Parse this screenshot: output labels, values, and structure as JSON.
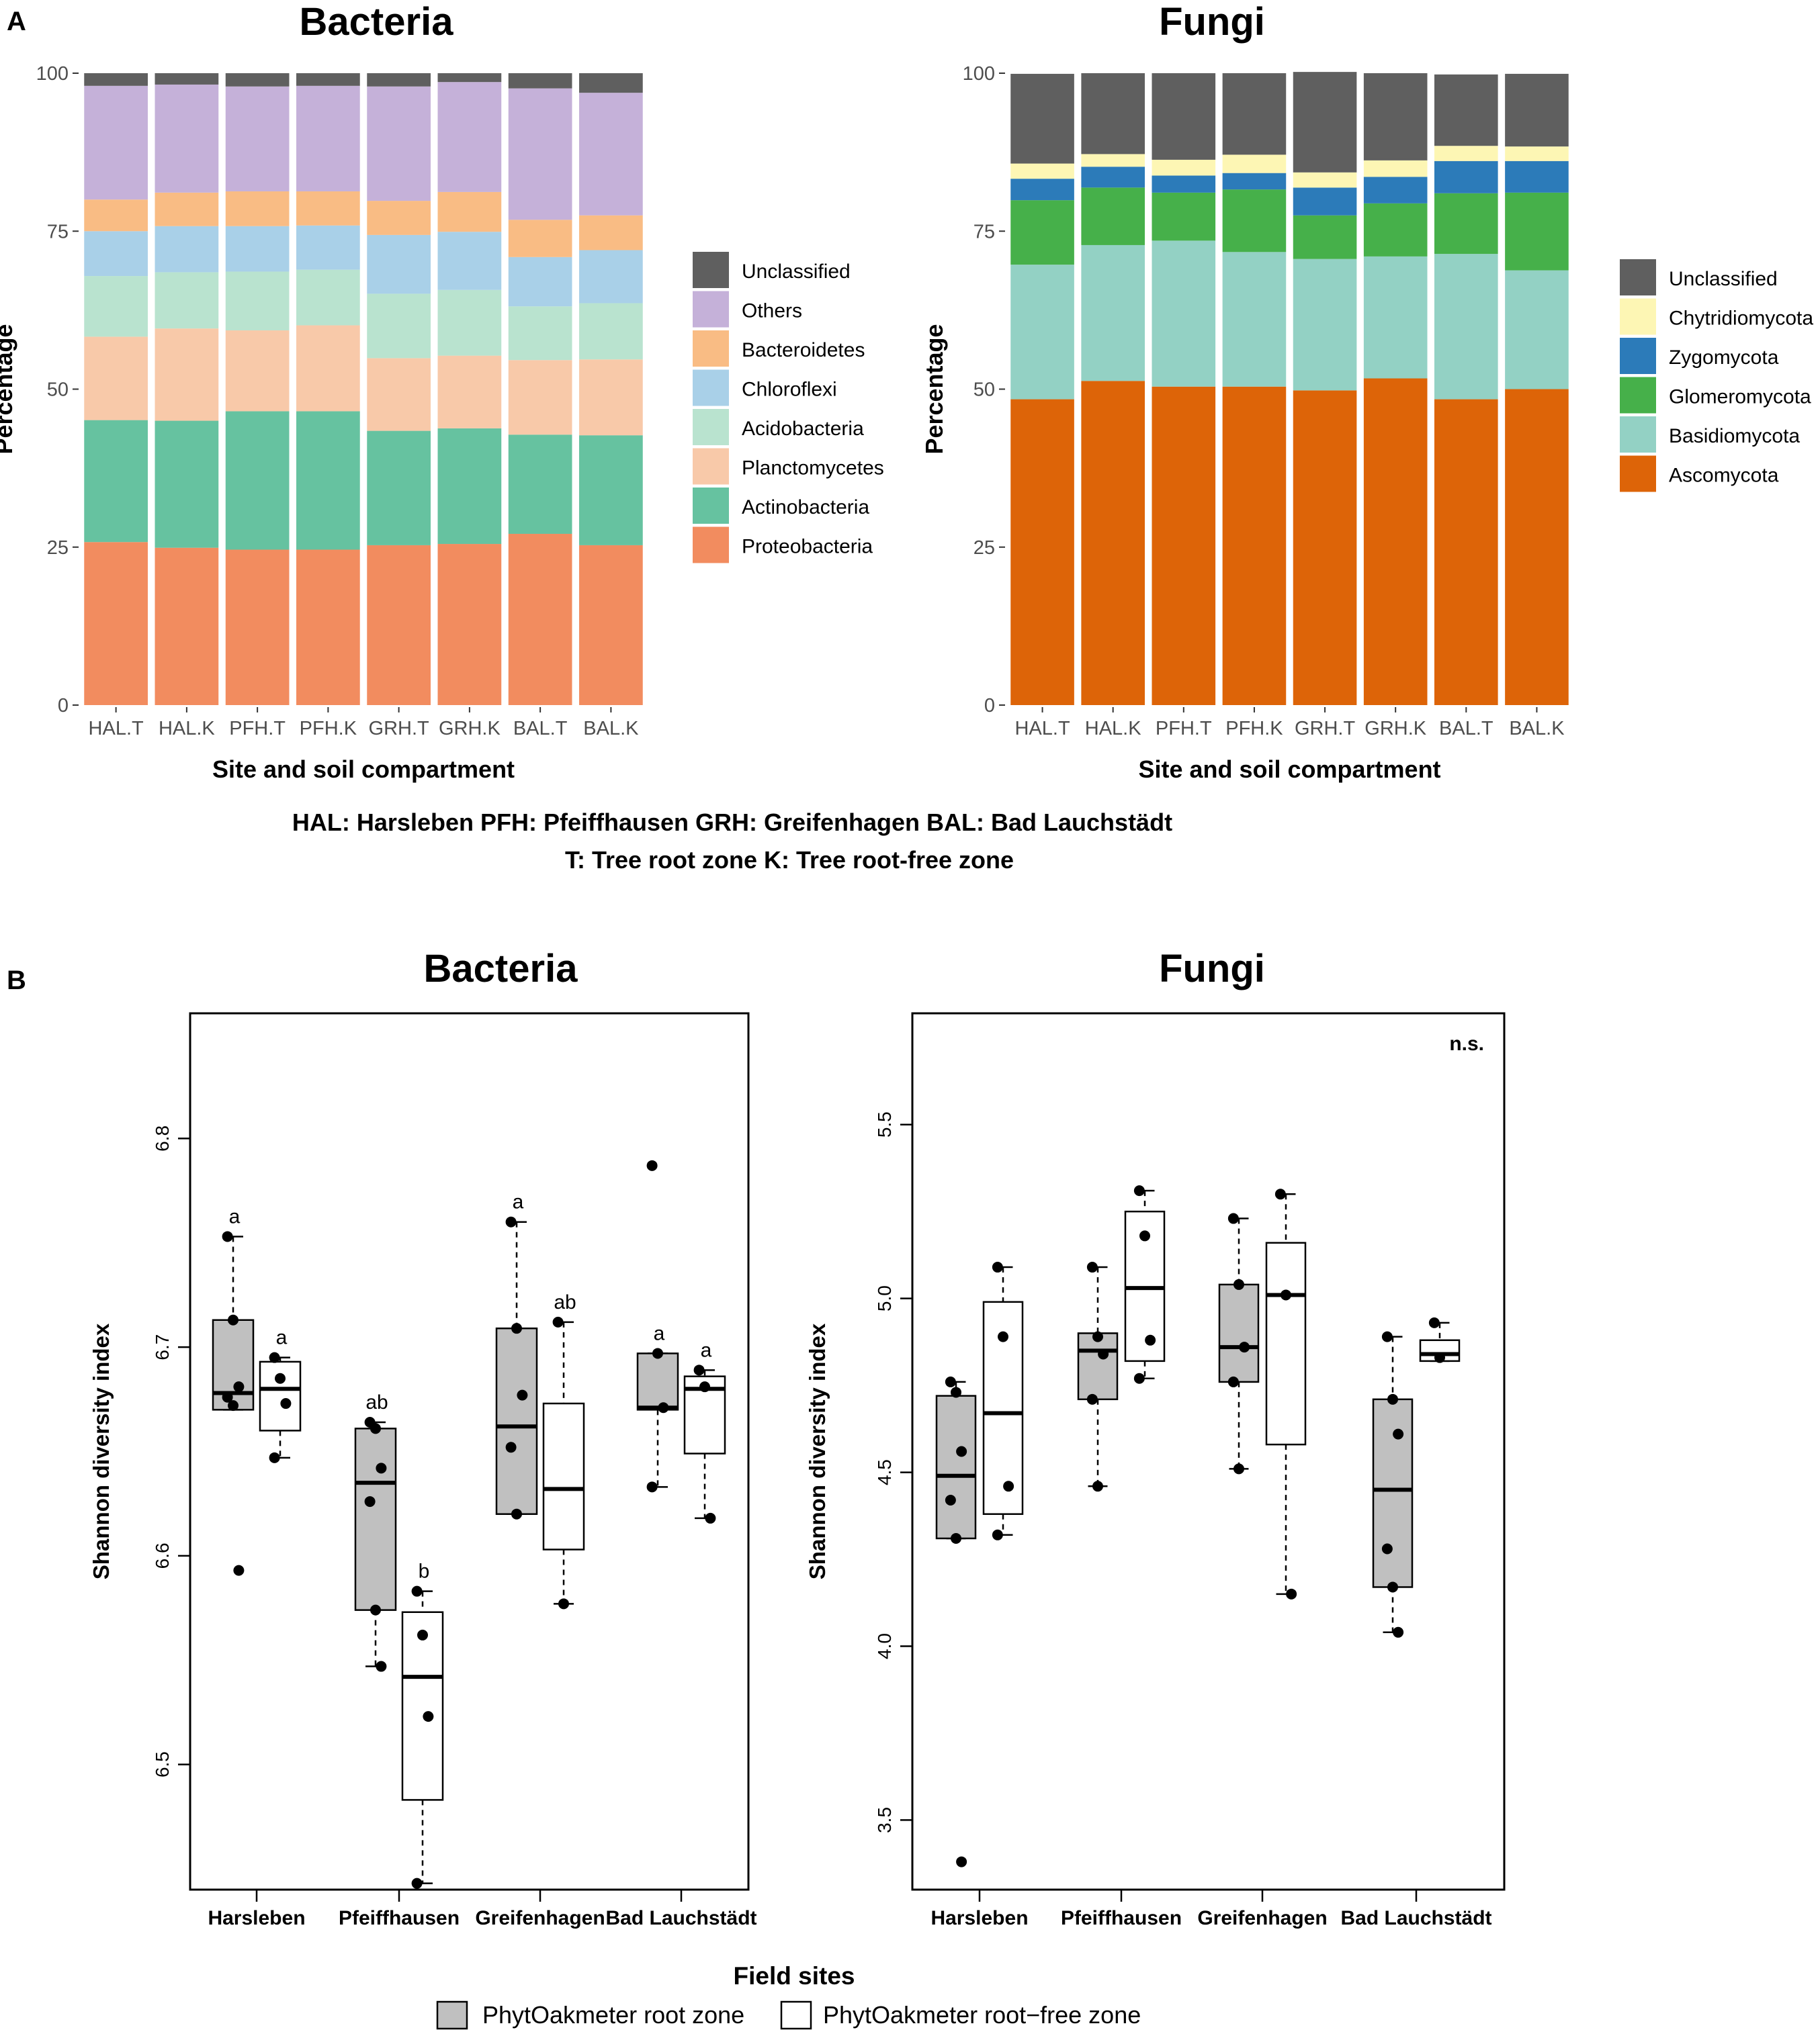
{
  "panel_a": {
    "letter": "A",
    "caption_line1": "HAL: Harsleben   PFH: Pfeiffhausen   GRH: Greifenhagen   BAL:  Bad Lauchstädt",
    "caption_line2": "T: Tree root zone     K: Tree root-free zone"
  },
  "panel_b": {
    "letter": "B",
    "xlabel": "Field sites",
    "legend": [
      {
        "label": "PhytOakmeter root zone",
        "fill": "#c0c0c0"
      },
      {
        "label": "PhytOakmeter root−free zone",
        "fill": "#ffffff"
      }
    ]
  },
  "chart_data": [
    {
      "type": "bar",
      "stacked": true,
      "title": "Bacteria",
      "xlabel": "Site and soil compartment",
      "ylabel": "Percentage",
      "ylim": [
        0,
        100
      ],
      "yticks": [
        0,
        25,
        50,
        75,
        100
      ],
      "categories": [
        "HAL.T",
        "HAL.K",
        "PFH.T",
        "PFH.K",
        "GRH.T",
        "GRH.K",
        "BAL.T",
        "BAL.K"
      ],
      "series": [
        {
          "name": "Proteobacteria",
          "color": "#f28c5f",
          "values": [
            25.8,
            24.9,
            24.6,
            24.6,
            25.3,
            25.5,
            27.1,
            25.3
          ]
        },
        {
          "name": "Actinobacteria",
          "color": "#66c2a0",
          "values": [
            19.3,
            20.1,
            21.9,
            21.9,
            18.1,
            18.3,
            15.7,
            17.4
          ]
        },
        {
          "name": "Planctomycetes",
          "color": "#f8c9a9",
          "values": [
            13.2,
            14.6,
            12.8,
            13.6,
            11.5,
            11.5,
            11.8,
            12.0
          ]
        },
        {
          "name": "Acidobacteria",
          "color": "#b9e3cf",
          "values": [
            9.6,
            8.9,
            9.3,
            8.8,
            10.2,
            10.4,
            8.5,
            8.9
          ]
        },
        {
          "name": "Chloroflexi",
          "color": "#a9d0e8",
          "values": [
            7.1,
            7.3,
            7.2,
            7.0,
            9.3,
            9.2,
            7.8,
            8.4
          ]
        },
        {
          "name": "Bacteroidetes",
          "color": "#f9bc84",
          "values": [
            5.0,
            5.3,
            5.5,
            5.4,
            5.4,
            6.3,
            5.9,
            5.5
          ]
        },
        {
          "name": "Others",
          "color": "#c5b1d9",
          "values": [
            18.0,
            17.1,
            16.6,
            16.7,
            18.1,
            17.4,
            20.8,
            19.4
          ]
        },
        {
          "name": "Unclassified",
          "color": "#5f5f5f",
          "values": [
            2.0,
            1.8,
            2.1,
            2.0,
            2.1,
            1.4,
            2.4,
            3.1
          ]
        }
      ]
    },
    {
      "type": "bar",
      "stacked": true,
      "title": "Fungi",
      "xlabel": "Site and soil compartment",
      "ylabel": "Percentage",
      "ylim": [
        0,
        100
      ],
      "yticks": [
        0,
        25,
        50,
        75,
        100
      ],
      "categories": [
        "HAL.T",
        "HAL.K",
        "PFH.T",
        "PFH.K",
        "GRH.T",
        "GRH.K",
        "BAL.T",
        "BAL.K"
      ],
      "series": [
        {
          "name": "Ascomycota",
          "color": "#dd6408",
          "values": [
            48.4,
            51.3,
            50.4,
            50.4,
            49.8,
            51.7,
            48.4,
            50.0
          ]
        },
        {
          "name": "Basidiomycota",
          "color": "#93d1c4",
          "values": [
            21.3,
            21.5,
            23.1,
            21.3,
            20.8,
            19.3,
            23.0,
            18.8
          ]
        },
        {
          "name": "Glomeromycota",
          "color": "#46b04a",
          "values": [
            10.2,
            9.1,
            7.6,
            9.9,
            6.9,
            8.4,
            9.6,
            12.3
          ]
        },
        {
          "name": "Zygomycota",
          "color": "#2c7bb9",
          "values": [
            3.4,
            3.3,
            2.7,
            2.6,
            4.4,
            4.2,
            5.1,
            5.0
          ]
        },
        {
          "name": "Chytridiomycota",
          "color": "#fdf6b4",
          "values": [
            2.4,
            2.0,
            2.5,
            2.9,
            2.4,
            2.6,
            2.4,
            2.3
          ]
        },
        {
          "name": "Unclassified",
          "color": "#5f5f5f",
          "values": [
            14.2,
            12.8,
            13.7,
            12.9,
            15.9,
            13.8,
            11.3,
            11.5
          ]
        }
      ]
    },
    {
      "type": "box",
      "title": "Bacteria",
      "ylabel": "Shannon diversity index",
      "ylim": [
        6.44,
        6.86
      ],
      "yticks": [
        6.5,
        6.6,
        6.7,
        6.8
      ],
      "sites": [
        "Harsleben",
        "Pfeiffhausen",
        "Greifenhagen",
        "Bad Lauchstädt"
      ],
      "significance": "",
      "groups": [
        {
          "site": "Harsleben",
          "zone": "root",
          "q1": 6.67,
          "median": 6.678,
          "q3": 6.713,
          "whisker_low": 6.67,
          "whisker_high": 6.753,
          "letter": "a",
          "points": [
            6.753,
            6.713,
            6.681,
            6.676,
            6.672,
            6.593
          ]
        },
        {
          "site": "Harsleben",
          "zone": "root-free",
          "q1": 6.66,
          "median": 6.68,
          "q3": 6.693,
          "whisker_low": 6.647,
          "whisker_high": 6.695,
          "letter": "a",
          "points": [
            6.695,
            6.685,
            6.673,
            6.647
          ]
        },
        {
          "site": "Pfeiffhausen",
          "zone": "root",
          "q1": 6.574,
          "median": 6.635,
          "q3": 6.661,
          "whisker_low": 6.547,
          "whisker_high": 6.664,
          "letter": "ab",
          "points": [
            6.664,
            6.661,
            6.642,
            6.626,
            6.574,
            6.547
          ]
        },
        {
          "site": "Pfeiffhausen",
          "zone": "root-free",
          "q1": 6.483,
          "median": 6.542,
          "q3": 6.573,
          "whisker_low": 6.443,
          "whisker_high": 6.583,
          "letter": "b",
          "points": [
            6.583,
            6.562,
            6.523,
            6.443
          ]
        },
        {
          "site": "Greifenhagen",
          "zone": "root",
          "q1": 6.62,
          "median": 6.662,
          "q3": 6.709,
          "whisker_low": 6.62,
          "whisker_high": 6.76,
          "letter": "a",
          "points": [
            6.76,
            6.709,
            6.677,
            6.652,
            6.62
          ]
        },
        {
          "site": "Greifenhagen",
          "zone": "root-free",
          "q1": 6.603,
          "median": 6.632,
          "q3": 6.673,
          "whisker_low": 6.577,
          "whisker_high": 6.712,
          "letter": "ab",
          "points": [
            6.712,
            6.577
          ]
        },
        {
          "site": "Bad Lauchstädt",
          "zone": "root",
          "q1": 6.67,
          "median": 6.671,
          "q3": 6.697,
          "whisker_low": 6.633,
          "whisker_high": 6.697,
          "letter": "a",
          "points": [
            6.787,
            6.697,
            6.671,
            6.633
          ]
        },
        {
          "site": "Bad Lauchstädt",
          "zone": "root-free",
          "q1": 6.649,
          "median": 6.68,
          "q3": 6.686,
          "whisker_low": 6.618,
          "whisker_high": 6.689,
          "letter": "a",
          "points": [
            6.689,
            6.681,
            6.618
          ]
        }
      ]
    },
    {
      "type": "box",
      "title": "Fungi",
      "ylabel": "Shannon diversity index",
      "ylim": [
        3.3,
        5.82
      ],
      "yticks": [
        3.5,
        4.0,
        4.5,
        5.0,
        5.5
      ],
      "sites": [
        "Harsleben",
        "Pfeiffhausen",
        "Greifenhagen",
        "Bad Lauchstädt"
      ],
      "significance": "n.s.",
      "groups": [
        {
          "site": "Harsleben",
          "zone": "root",
          "q1": 4.31,
          "median": 4.49,
          "q3": 4.72,
          "whisker_low": 4.31,
          "whisker_high": 4.76,
          "letter": "",
          "points": [
            4.76,
            4.73,
            4.56,
            4.42,
            4.31,
            3.38
          ]
        },
        {
          "site": "Harsleben",
          "zone": "root-free",
          "q1": 4.38,
          "median": 4.67,
          "q3": 4.99,
          "whisker_low": 4.32,
          "whisker_high": 5.09,
          "letter": "",
          "points": [
            5.09,
            4.89,
            4.46,
            4.32
          ]
        },
        {
          "site": "Pfeiffhausen",
          "zone": "root",
          "q1": 4.71,
          "median": 4.85,
          "q3": 4.9,
          "whisker_low": 4.46,
          "whisker_high": 5.09,
          "letter": "",
          "points": [
            5.09,
            4.89,
            4.84,
            4.71,
            4.46
          ]
        },
        {
          "site": "Pfeiffhausen",
          "zone": "root-free",
          "q1": 4.82,
          "median": 5.03,
          "q3": 5.25,
          "whisker_low": 4.77,
          "whisker_high": 5.31,
          "letter": "",
          "points": [
            5.31,
            5.18,
            4.88,
            4.77
          ]
        },
        {
          "site": "Greifenhagen",
          "zone": "root",
          "q1": 4.76,
          "median": 4.86,
          "q3": 5.04,
          "whisker_low": 4.51,
          "whisker_high": 5.23,
          "letter": "",
          "points": [
            5.23,
            5.04,
            4.86,
            4.76,
            4.51
          ]
        },
        {
          "site": "Greifenhagen",
          "zone": "root-free",
          "q1": 4.58,
          "median": 5.01,
          "q3": 5.16,
          "whisker_low": 4.15,
          "whisker_high": 5.3,
          "letter": "",
          "points": [
            5.3,
            5.01,
            4.15
          ]
        },
        {
          "site": "Bad Lauchstädt",
          "zone": "root",
          "q1": 4.17,
          "median": 4.45,
          "q3": 4.71,
          "whisker_low": 4.04,
          "whisker_high": 4.89,
          "letter": "",
          "points": [
            4.89,
            4.71,
            4.61,
            4.28,
            4.17,
            4.04
          ]
        },
        {
          "site": "Bad Lauchstädt",
          "zone": "root-free",
          "q1": 4.82,
          "median": 4.84,
          "q3": 4.88,
          "whisker_low": 4.82,
          "whisker_high": 4.93,
          "letter": "",
          "points": [
            4.93,
            4.83
          ]
        }
      ]
    }
  ]
}
